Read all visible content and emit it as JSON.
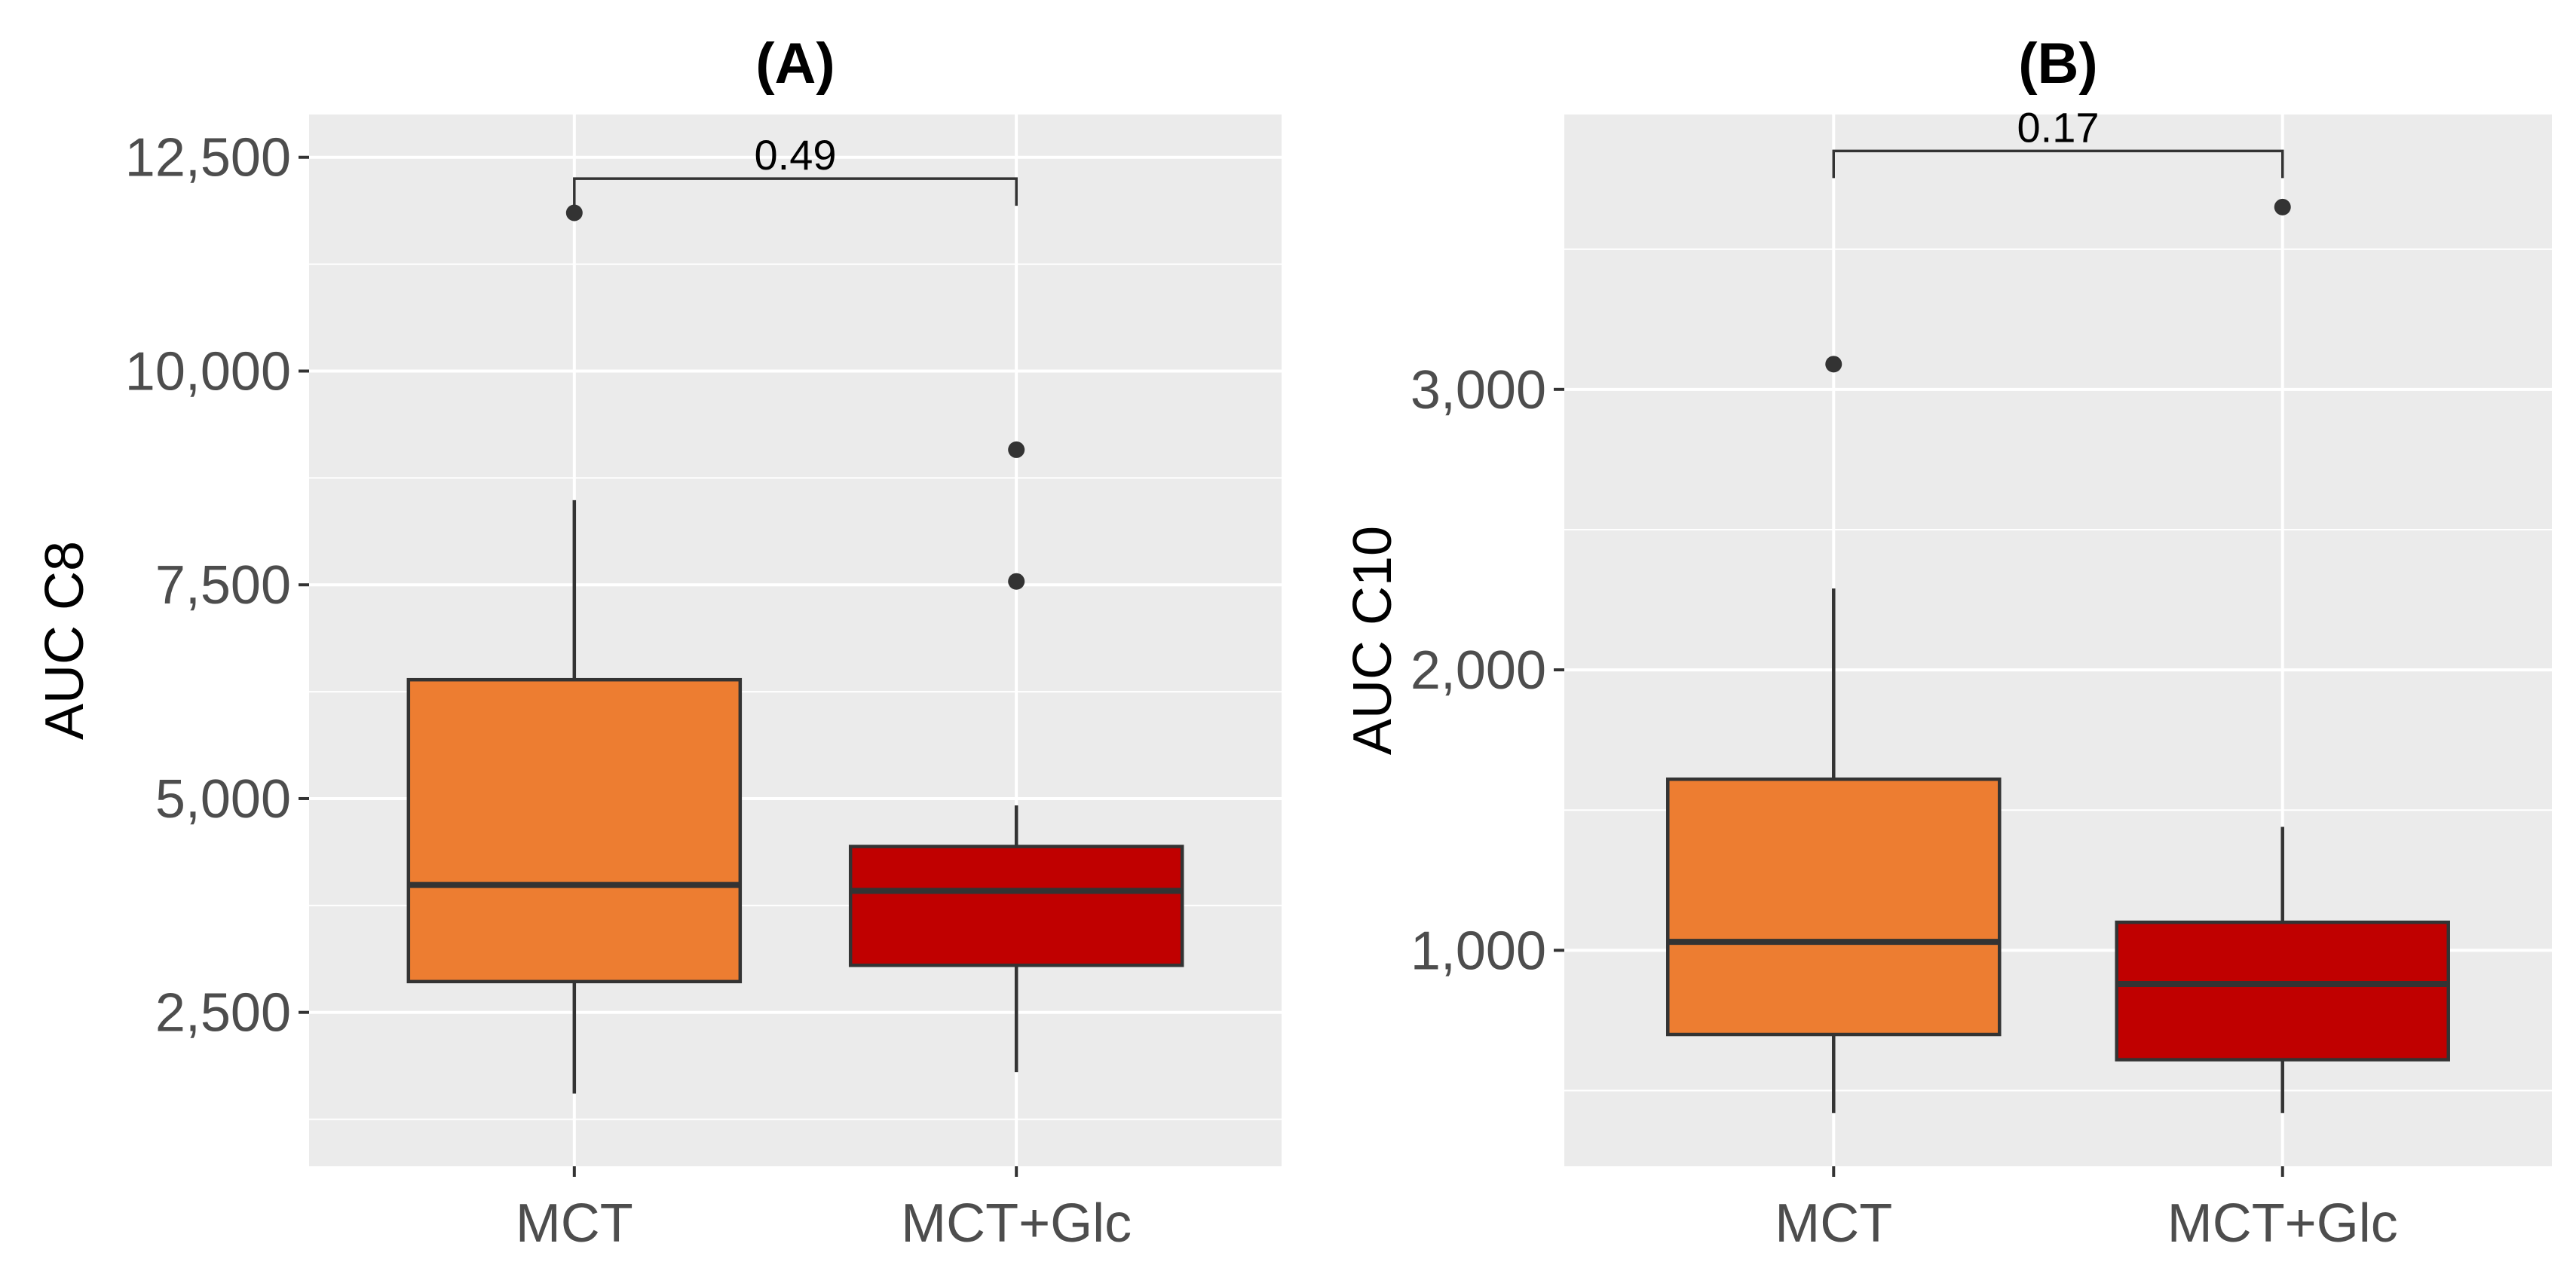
{
  "chart_data": [
    {
      "type": "box",
      "title": "(A)",
      "xlabel": "",
      "ylabel": "AUC C8",
      "ylim": [
        700,
        13000
      ],
      "yticks": [
        2500,
        5000,
        7500,
        10000,
        12500
      ],
      "ytick_labels": [
        "2,500",
        "5,000",
        "7,500",
        "10,000",
        "12,500"
      ],
      "categories": [
        "MCT",
        "MCT+Glc"
      ],
      "boxes": [
        {
          "name": "MCT",
          "color": "#ed7d31",
          "whisker_low": 1550,
          "q1": 2860,
          "median": 3990,
          "q3": 6390,
          "whisker_high": 8490,
          "outliers": [
            11850
          ]
        },
        {
          "name": "MCT+Glc",
          "color": "#c00000",
          "whisker_low": 1800,
          "q1": 3050,
          "median": 3920,
          "q3": 4440,
          "whisker_high": 4920,
          "outliers": [
            9080,
            7540
          ]
        }
      ],
      "annotation": {
        "text": "0.49",
        "y": 12250
      }
    },
    {
      "type": "box",
      "title": "(B)",
      "xlabel": "",
      "ylabel": "AUC C10",
      "ylim": [
        230,
        3980
      ],
      "yticks": [
        1000,
        2000,
        3000
      ],
      "ytick_labels": [
        "1,000",
        "2,000",
        "3,000"
      ],
      "categories": [
        "MCT",
        "MCT+Glc"
      ],
      "boxes": [
        {
          "name": "MCT",
          "color": "#ed7d31",
          "whisker_low": 420,
          "q1": 700,
          "median": 1030,
          "q3": 1610,
          "whisker_high": 2290,
          "outliers": [
            3090
          ]
        },
        {
          "name": "MCT+Glc",
          "color": "#c00000",
          "whisker_low": 420,
          "q1": 610,
          "median": 880,
          "q3": 1100,
          "whisker_high": 1440,
          "outliers": [
            3650
          ]
        }
      ],
      "annotation": {
        "text": "0.17",
        "y": 3850
      }
    }
  ]
}
